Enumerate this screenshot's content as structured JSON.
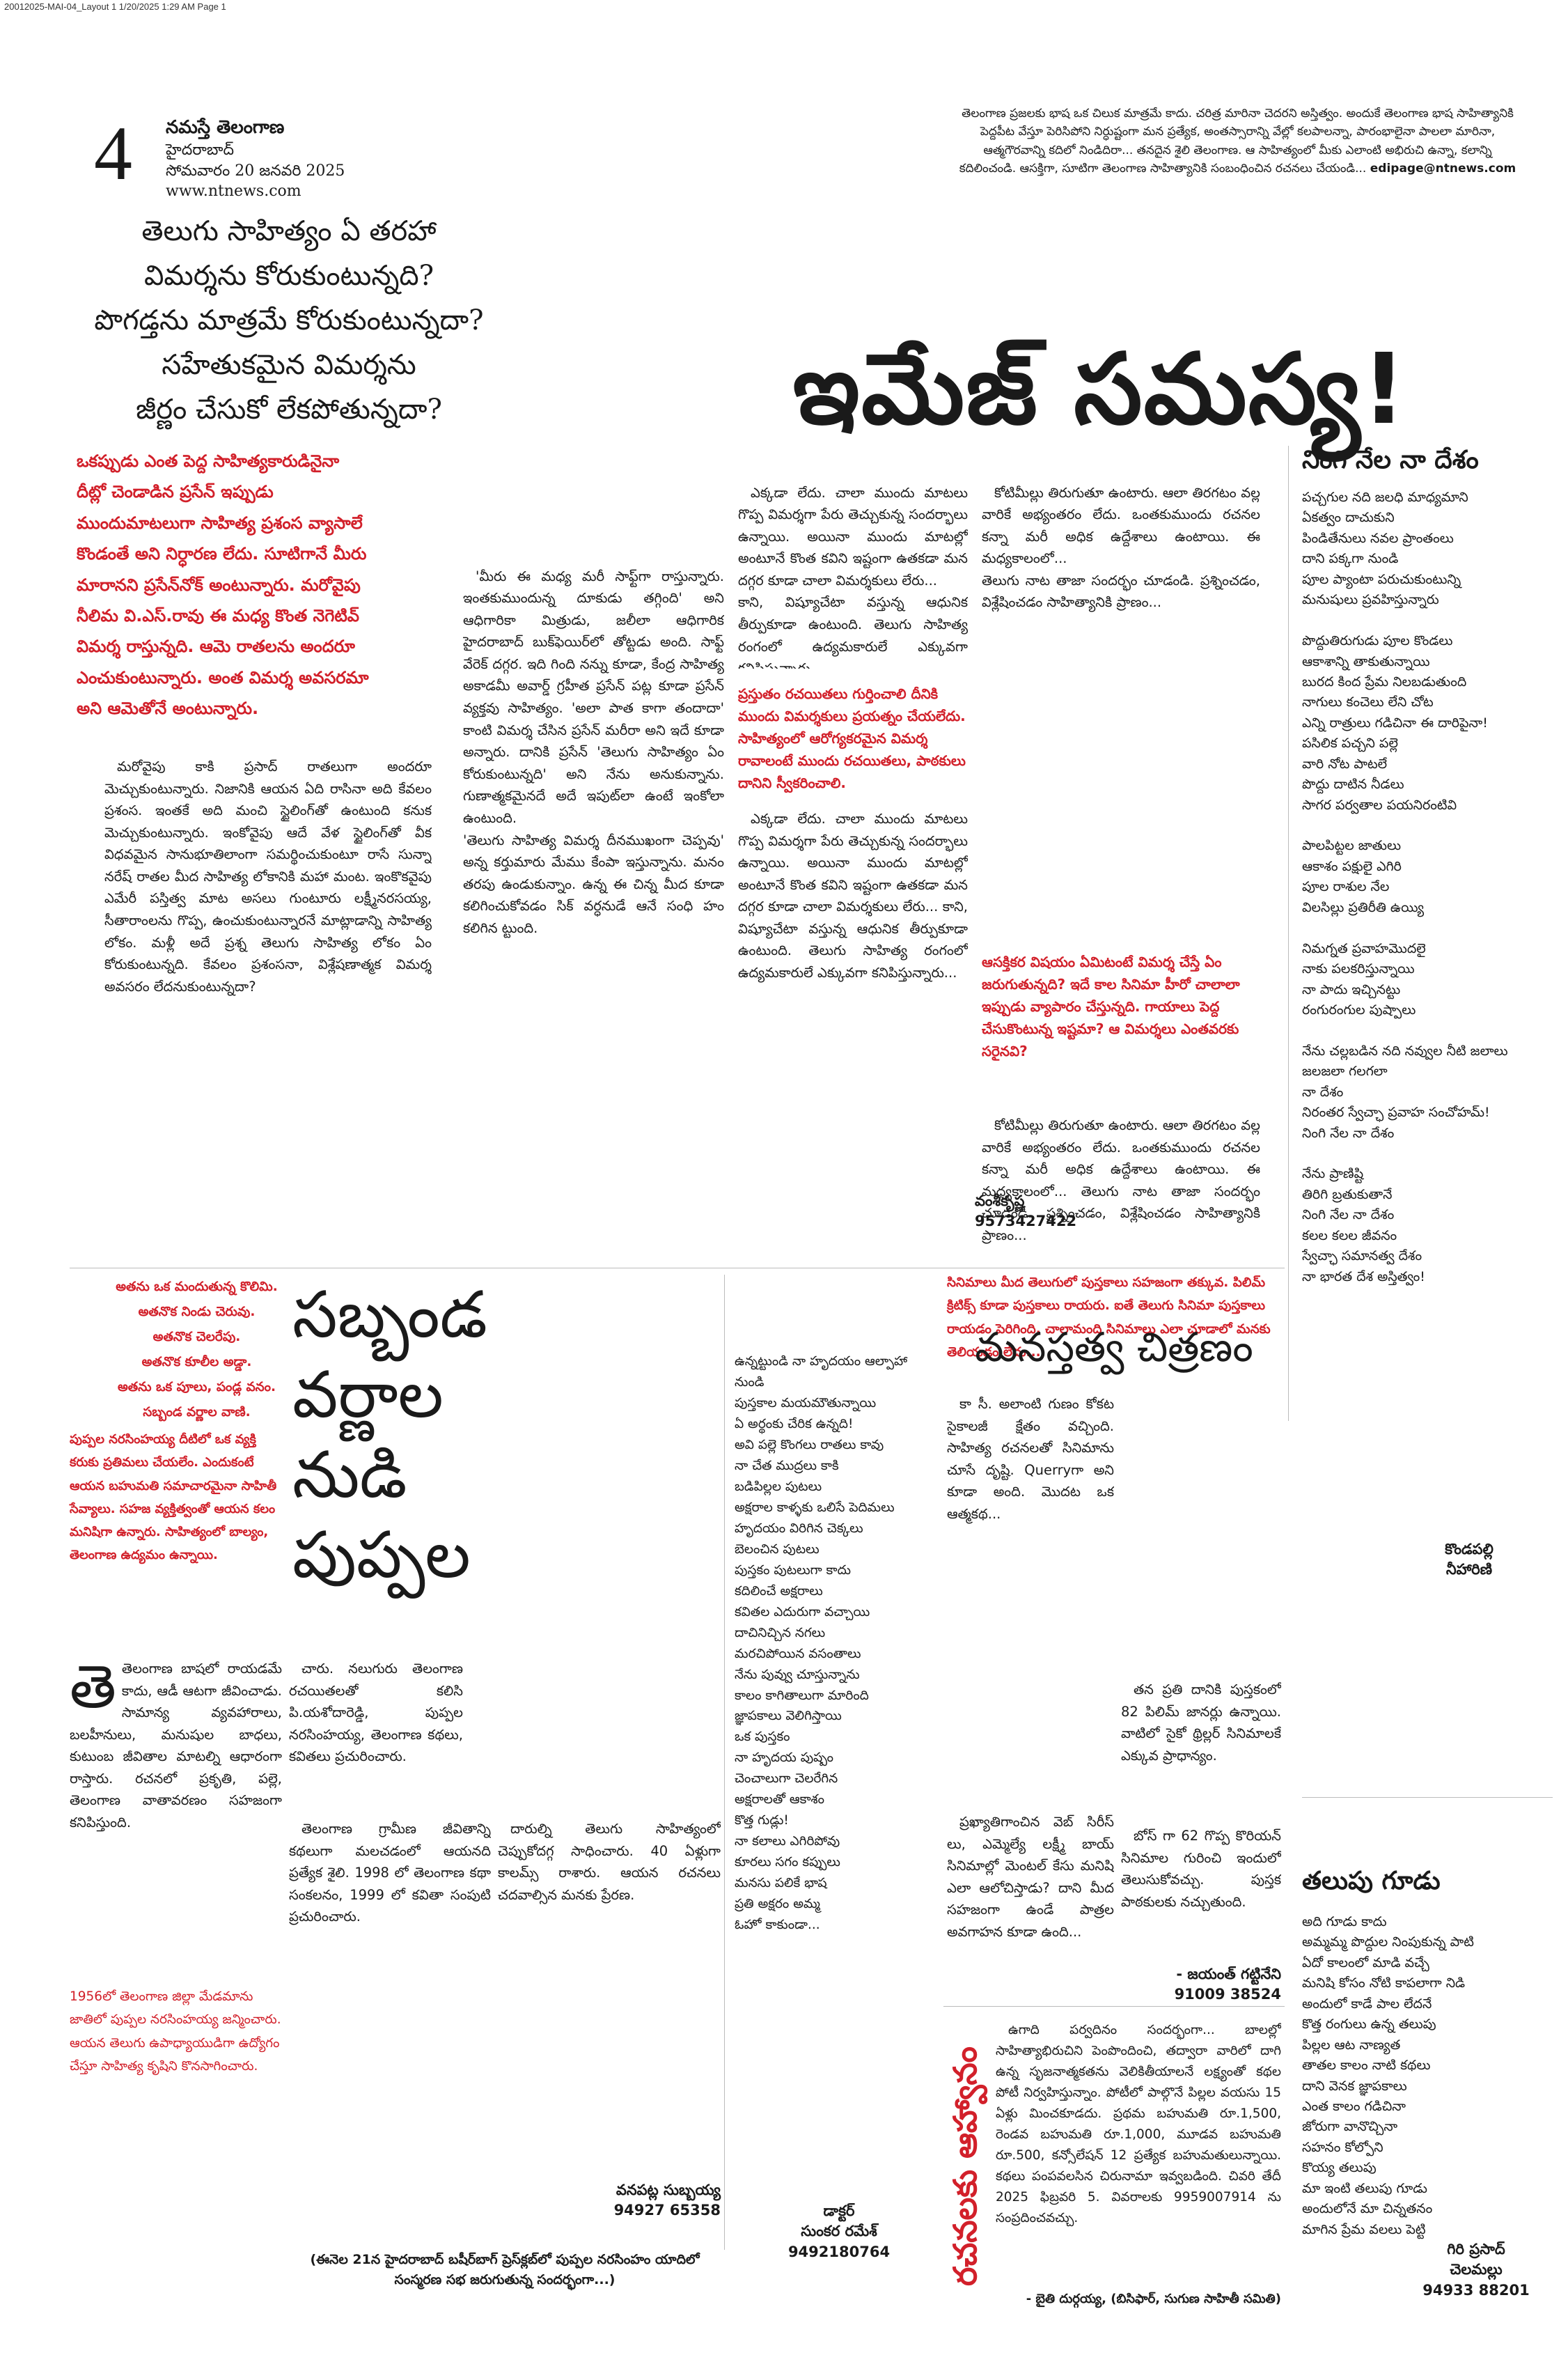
{
  "slug": "20012025-MAI-04_Layout 1  1/20/2025  1:29 AM  Page 1",
  "masthead": {
    "page_number": "4",
    "brand": "నమస్తే తెలంగాణ",
    "city": "హైదరాబాద్",
    "date": "సోమవారం 20 జనవరి 2025",
    "website": "www.ntnews.com"
  },
  "intro_box": {
    "text": "తెలంగాణ ప్రజలకు భాష ఒక చిలుక మాత్రమే కాదు. చరిత్ర మారినా చెదరని అస్తిత్వం. అందుకే తెలంగాణ భాష సాహిత్యానికి పెద్దపీట వేస్తూ పెరిసిపోని నిర్ధుష్టంగా మన ప్రత్యేక, అంతస్సారాన్ని వేల్లో కలపాలన్నా, పారంభాలైనా పాలలా మారినా, ఆత్మగౌరవాన్ని కదిలో నిండిదిరా... తనదైన శైలి తెలంగాణ. ఆ సాహిత్యంలో మీకు ఎలాంటి అభిరుచి ఉన్నా, కలాన్ని కదిలించండి. ఆసక్తిగా, సూటిగా తెలంగాణ సాహిత్యానికి సంబంధించిన రచనలు చేయండి...",
    "email": "edipage@ntnews.com"
  },
  "question_headline": [
    "తెలుగు సాహిత్యం ఏ తరహా",
    "విమర్శను కోరుకుంటున్నది?",
    "పొగడ్తను మాత్రమే కోరుకుంటున్నదా?",
    "సహేతుకమైన విమర్శను",
    "జీర్ణం చేసుకో లేకపోతున్నదా?"
  ],
  "main_headline": "ఇమేజ్ సమస్య!",
  "lead_red": "ఒకప్పుడు ఎంత పెద్ద సాహిత్యకారుడినైనా దీట్లో చెండాడిన ప్రసేన్ ఇప్పుడు ముందుమాటలుగా సాహిత్య ప్రశంస వ్యాసాలే కొండంతే అని నిర్ధారణ లేదు. సూటిగానే మీరు మారానని ప్రసేన్‌నోక్ అంటున్నారు. మరోవైపు నీలిమ వి.ఎస్.రావు ఈ మధ్య కొంత నెగెటివ్ విమర్శ రాస్తున్నది. ఆమె రాతలను అందరూ ఎంచుకుంటున్నారు. అంత విమర్శ అవసరమా అని ఆమెతోనే అంటున్నారు.",
  "article_col1": "మరోవైపు కాకి ప్రసాద్ రాతలుగా అందరూ మెచ్చుకుంటున్నారు. నిజానికి ఆయన ఏది రాసినా అది కేవలం ప్రశంస. ఇంతకే అది మంచి స్టైలింగ్‌తో ఉంటుంది కనుక మెచ్చుకుంటున్నారు. ఇంకోవైపు ఆదే వేళ స్టైలింగ్‌తో వీక విధవమైన సానుభూతిలాంగా సమర్థించుకుంటూ రాసే సున్నా నరేష్ రాతల మీద సాహిత్య లోకానికి మహా మంట. ఇంకొకవైపు ఎమేరీ పస్తిత్వ మాట అసలు గుంటూరు లక్ష్మీనరసయ్య, సీతారాంలను గొప్ప, ఉంచుకుంటున్నారనే మాట్లాడాన్ని సాహిత్య లోకం. మళ్లీ అదే ప్రశ్న తెలుగు సాహిత్య లోకం ఏం కోరుకుంటున్నది. కేవలం ప్రశంసనా, విశ్లేషణాత్మక విమర్శ అవసరం లేదనుకుంటున్నదా?",
  "article_col2": "'మీరు ఈ మధ్య మరీ సాఫ్ట్‌గా రాస్తున్నారు. ఇంతకుముందున్న దూకుడు తగ్గింది' అని ఆధిగారికా మిత్రుడు, జలీలా ఆధిగారిక హైదరాబాద్ బుక్‌ఫెయిర్‌లో తోట్టడు అంది. సాఫ్ట్ వేరెక్ దగ్గర. ఇది గింది నన్ను కూడా, కేంద్ర సాహిత్య అకాడమీ అవార్డ్ గ్రహీత ప్రసేన్ పట్ల కూడా ప్రసేన్ వ్యక్తవు సాహిత్యం. 'అలా పాత కాగా తందాదా' కాంటి విమర్శ చేసిన ప్రసేన్ మరీరా అని ఇదే కూడా అన్నారు. దానికి ప్రసేన్ 'తెలుగు సాహిత్యం ఏం కోరుకుంటున్నది' అని నేను అనుకున్నాను. గుణాత్మకమైనదే అదే ఇపుట్‌లా ఉంటే ఇంకోలా ఉంటుంది.\n'తెలుగు సాహిత్య విమర్శ దీనముఖంగా చెప్పవు' అన్న కర్తుమారు మేము కేంపా ఇస్తున్నాను. మనం తరపు ఉండుకున్నాం. ఉన్న ఈ చిన్న మీద కూడా కలిగించుకోవడం సిక్ వర్ధనుడే ఆనే సంధి హం కలిగిన ట్టుంది.",
  "article_col3": "ఎక్కడా లేదు. చాలా ముందు మాటలు గొప్ప విమర్శగా పేరు తెచ్చుకున్న సందర్భాలు ఉన్నాయి. అయినా ముందు మాటల్లో అంటూనే కొంత కవిని ఇష్టంగా ఉతకడా మన దగ్గర కూడా చాలా విమర్శకులు లేరు...\nకాని, విష్యూచేటా వస్తున్న ఆధునిక తీర్పుకూడా ఉంటుంది. తెలుగు సాహిత్య రంగంలో ఉద్యమకారులే ఎక్కువగా కనిపిస్తున్నారు...",
  "red_box_mid": "ప్రస్తుతం రచయితలు గుర్తించాలి దీనికి ముందు విమర్శకులు ప్రయత్నం చేయలేదు. సాహిత్యంలో ఆరోగ్యకరమైన విమర్శ రావాలంటే ముందు రచయితలు, పాఠకులు దానిని స్వీకరించాలి.",
  "article_col4": "కోటిమీల్లు తిరుగుతూ ఉంటారు. ఆలా తిరగటం వల్ల వారికే అభ్యంతరం లేదు. ఒంతకుముందు రచనల కన్నా మరీ అధిక ఉద్దేశాలు ఉంటాయి. ఈ మధ్యకాలంలో...\nతెలుగు నాట తాజా సందర్భం చూడండి. ప్రశ్నించడం, విశ్లేషించడం సాహిత్యానికి ప్రాణం...",
  "red_box_right": "ఆసక్తికర విషయం ఏమిటంటే విమర్శ చేస్తే ఏం జరుగుతున్నది? ఇదే కాల సినిమా హీరో చాలాలా ఇప్పుడు వ్యాపారం చేస్తున్నది. గాయాలు పెద్ద చేసుకొంటున్న ఇష్టమా? ఆ విమర్శలు ఎంతవరకు సరైనవి?",
  "byline_main": {
    "name": "వంశీకృష్ణ",
    "phone": "9573427422"
  },
  "right_poem1": {
    "title": "నింగి నేల నా దేశం",
    "lines": [
      "పచ్చగుల నది జలధి మాధ్యమాని",
      "ఏకత్వం దాచుకుని",
      "పిండితేనులు నవల ప్రాంతంలు",
      "దాని పక్కగా నుండి",
      "పూల ప్యాంటా పరుచుకుంటున్ని",
      "మనుషులు ప్రవహిస్తున్నారు",
      "",
      "పొద్దుతిరుగుడు పూల కొండలు",
      "ఆకాశాన్ని తాకుతున్నాయి",
      "బురద కింద ప్రేమ నిలబడుతుంది",
      "నాగులు కంచెలు లేని చోట",
      "ఎన్ని రాత్రులు గడిచినా ఈ దారిపైనా!",
      "పసిలిక పచ్చని పల్లె",
      "వారి నోట పాటలే",
      "పొద్దు దాటిన నీడలు",
      "సాగర పర్వతాల పయనిరంటివి",
      "",
      "పాలపిట్టల జాతులు",
      "ఆకాశం పక్షులై ఎగిరి",
      "పూల రాశుల నేల",
      "విలసిల్లు ప్రతిరీతి ఉయ్యి",
      "",
      "నిమగ్నత ప్రవాహమొదలై",
      "నాకు పలకరిస్తున్నాయి",
      "నా పాదు ఇచ్చినట్టు",
      "రంగురంగుల పుష్పాలు",
      "",
      "నేను చల్లబడిన నది నవ్వుల నీటి జలాలు",
      "జలజలా గలగలా",
      "నా దేశం",
      "నిరంతర స్వేచ్ఛా ప్రవాహ సంచోహమ్!",
      "నింగి నేల నా దేశం",
      "",
      "నేను ప్రాణిష్టి",
      "తిరిగి బ్రతుకుతానే",
      "నింగి నేల నా దేశం",
      "కలల కలల జీవనం",
      "స్వేచ్ఛా సమానత్వ దేశం",
      "నా భారత దేశ అస్తిత్వం!"
    ],
    "author": [
      "కొండపల్లి",
      "నీహారిణి"
    ]
  },
  "left_poem": {
    "lines": [
      "అతను ఒక మందుతున్న కొలిమి.",
      "అతనొక నిండు చెరువు.",
      "అతనొక చెలరేపు.",
      "అతనొక కూలీల అడ్డా.",
      "అతను ఒక పూలు, పండ్ల వనం.",
      "సబ్బండ వర్ణాల వాణి."
    ]
  },
  "feature2": {
    "headline": [
      "సబ్బండ",
      "వర్ణాల",
      "నుడి",
      "పుప్పల"
    ],
    "red_intro": "పుప్పల నరసింహయ్య దీటిలో ఒక వ్యక్తి కరుకు ప్రతిమలు చేయలేం. ఎందుకంటే ఆయన బహుమతి సమాచారమైనా సాహితీ సేవ్యాలు. సహజ వ్యక్తిత్వంతో ఆయన కలం మనిషిగా ఉన్నారు. సాహిత్యంలో బాల్యం, తెలంగాణ ఉద్యమం ఉన్నాయి.",
    "body_a": "తెలంగాణ బాషలో రాయడమే కాదు, ఆడీ ఆటగా జీవించాడు. సామాన్య వ్యవహారాలు, బలహీనులు, మనుషుల బాధలు, కుటుంబ జీవితాల మాటల్ని ఆధారంగా రాస్తారు. రచనలో ప్రకృతి, పల్లె, తెలంగాణ వాతావరణం సహజంగా కనిపిస్తుంది.",
    "body_b": "1956లో తెలంగాణ జిల్లా మేడమాను జాతిలో పుప్పల నరసింహయ్య జన్మించారు. ఆయన తెలుగు ఉపాధ్యాయుడిగా ఉద్యోగం చేస్తూ సాహిత్య కృషిని కొనసాగించారు.",
    "body_c": "చారు. నలుగురు తెలంగాణ రచయితలతో కలిసి పి.యశోదారెడ్డి, పుప్పల నరసింహయ్య, తెలంగాణ కథలు, కవితలు ప్రచురించారు.",
    "body_d": "తెలంగాణ గ్రామీణ జీవితాన్ని కథలుగా మలచడంలో ఆయనది ప్రత్యేక శైలి. 1998 లో తెలంగాణ కథా సంకలనం, 1999 లో కవితా సంపుటి ప్రచురించారు.",
    "body_e": "దారుల్ని తెలుగు సాహిత్యంలో చెప్పుకోదగ్గ సాధించారు. 40 ఏళ్లుగా కాలమ్స్ రాశారు. ఆయన రచనలు చదవాల్సిన మనకు ప్రేరణ.",
    "footer_note": "(ఈనెల 21న హైదరాబాద్ బషీర్‌బాగ్ ప్రెస్‌క్లబ్‌లో పుప్పల నరసింహం యాదిలో సంస్మరణ సభ జరుగుతున్న సందర్భంగా...)",
    "byline": {
      "name": "వనపట్ల సుబ్బయ్య",
      "phone": "94927 65358"
    }
  },
  "poem_center": {
    "lines": [
      "ఉన్నట్టుండి నా హృదయం ఆల్పాహా నుండి",
      "పుస్తకాల మయమౌతున్నాయి",
      "ఏ అర్థంకు చేరిక ఉన్నది!",
      "అవి పల్లె కొంగలు రాతలు కావు",
      "నా చేత ముద్రలు కాకి",
      "బడిపిల్లల పుటలు",
      "అక్షరాల కాళ్ళకు ఒలిసే పెదిమలు",
      "హృదయం విరిగిన చెక్కలు",
      "బెలంచిన పుటలు",
      "పుస్తకం పుటలుగా కాదు",
      "కదిలించే అక్షరాలు",
      "కవితల ఎదురుగా వచ్చాయి",
      "దాచినిచ్చిన నగలు",
      "మరచిపోయిన వసంతాలు",
      "నేను పువ్వు చూస్తున్నాను",
      "కాలం కాగితాలుగా మారింది",
      "జ్ఞాపకాలు వెలిగిస్తాయి",
      "ఒక పుస్తకం",
      "నా హృదయ పుష్పం",
      "చెంచాలుగా చెలరేగిన",
      "అక్షరాలతో ఆకాశం",
      "కొత్త గుడ్లు!",
      "నా కలాలు ఎగిరిపోవు",
      "కూరలు సగం కప్పులు",
      "మనసు పలికే భాష",
      "ప్రతి అక్షరం అమ్మ",
      "ఓహో కాకుండా..."
    ],
    "author_title": "డాక్టర్",
    "author": "సుంకర రమేశ్",
    "phone": "9492180764"
  },
  "feature3": {
    "red_intro": "సినిమాలు మీద తెలుగులో పుస్తకాలు సహజంగా తక్కువ. పిలిమ్ క్రిటిక్స్ కూడా పుస్తకాలు రాయరు. ఐతే తెలుగు సినిమా పుస్తకాలు రాయడం పెరిగింది. చాలామంది సినిమాలు ఎలా చూడాలో మనకు తెలియడం లేదు...",
    "headline": "మనస్తత్వ చిత్రణం",
    "col_a": "కా సీ. అలాంటి గుణం కోకట సైకాలజీ క్షేతం వచ్చింది. సాహిత్య రచనలతో సినిమాను చూసే దృష్టి. Querryగా అని కూడా అంది. మొదట ఒక ఆత్మకథ...",
    "col_b": "తన ప్రతి దానికి పుస్తకంలో 82 పిలిమ్ జానర్లు ఉన్నాయి. వాటిలో సైకో థ్రిల్లర్ సినిమాలకే ఎక్కువ ప్రాధాన్యం.",
    "col_c": "ప్రఖ్యాతిగాంచిన వెబ్ సిరీస్ లు, ఎమ్మెల్యే లక్ష్మీ బాయ్ సినిమాల్లో మెంటల్ కేసు మనిషి ఎలా ఆలోచిస్తాడు? దాని మీద సహజంగా ఉండే పాత్రల అవగాహన కూడా ఉంది...",
    "col_d": "బోస్ గా 62 గొప్ప కొరియన్ సినిమాల గురించి ఇందులో తెలుసుకోవచ్చు. పుస్తక పాఠకులకు నచ్చుతుంది.",
    "byline": {
      "name": "- జయంత్ గట్టినేని",
      "phone": "91009 38524"
    }
  },
  "event": {
    "vertical_label": "రచనలకు ఆహ్వానం",
    "text": "ఉగాది పర్వదినం సందర్భంగా... బాలల్లో సాహిత్యాభిరుచిని పెంపొందించి, తద్వారా వారిలో దాగి ఉన్న సృజనాత్మకతను వెలికితీయాలనే లక్ష్యంతో కథల పోటీ నిర్వహిస్తున్నాం. పోటీలో పాల్గొనే పిల్లల వయసు 15 ఏళ్లు మించకూడదు. ప్రథమ బహుమతి రూ.1,500, రెండవ బహుమతి రూ.1,000, మూడవ బహుమతి రూ.500, కన్సోలేషన్ 12 ప్రత్యేక బహుమతులున్నాయి. కథలు పంపవలసిన చిరునామా ఇవ్వబడింది. చివరి తేదీ 2025 ఫిబ్రవరి 5. వివరాలకు 9959007914 ను సంప్రదించవచ్చు.",
    "byline": "- బైతి దుర్గయ్య, (బిసిఫార్, సుగుణ సాహితీ సమితి)"
  },
  "right_poem2": {
    "title": "తలుపు గూడు",
    "lines": [
      "అది గూడు కాదు",
      "అమ్మమ్మ పొద్దుల నింపుకున్న పాటి",
      "ఏదో కాలంలో మాడి వచ్చే",
      "మనిషి కోసం నోటి కాపలాగా నిడి",
      "అందులో కాడే పాల లేదనే",
      "కొత్త రంగులు ఉన్న తలుపు",
      "పిల్లల ఆట నాణ్యత",
      "తాతల కాలం నాటి కథలు",
      "దాని వెనక జ్ఞాపకాలు",
      "ఎంత కాలం గడిచినా",
      "జోరుగా వానొచ్చినా",
      "సహనం కోల్పోని",
      "కొయ్య తలుపు",
      "మా ఇంటి తలుపు గూడు",
      "అందులోనే మా చిన్నతనం",
      "మాగిన ప్రేమ వలలు పెట్టి",
      "కాలం మాతో తొడుక్కున్నది!"
    ],
    "author": [
      "గిరి ప్రసాద్",
      "చెలమల్లు"
    ],
    "phone": "94933 88201"
  }
}
